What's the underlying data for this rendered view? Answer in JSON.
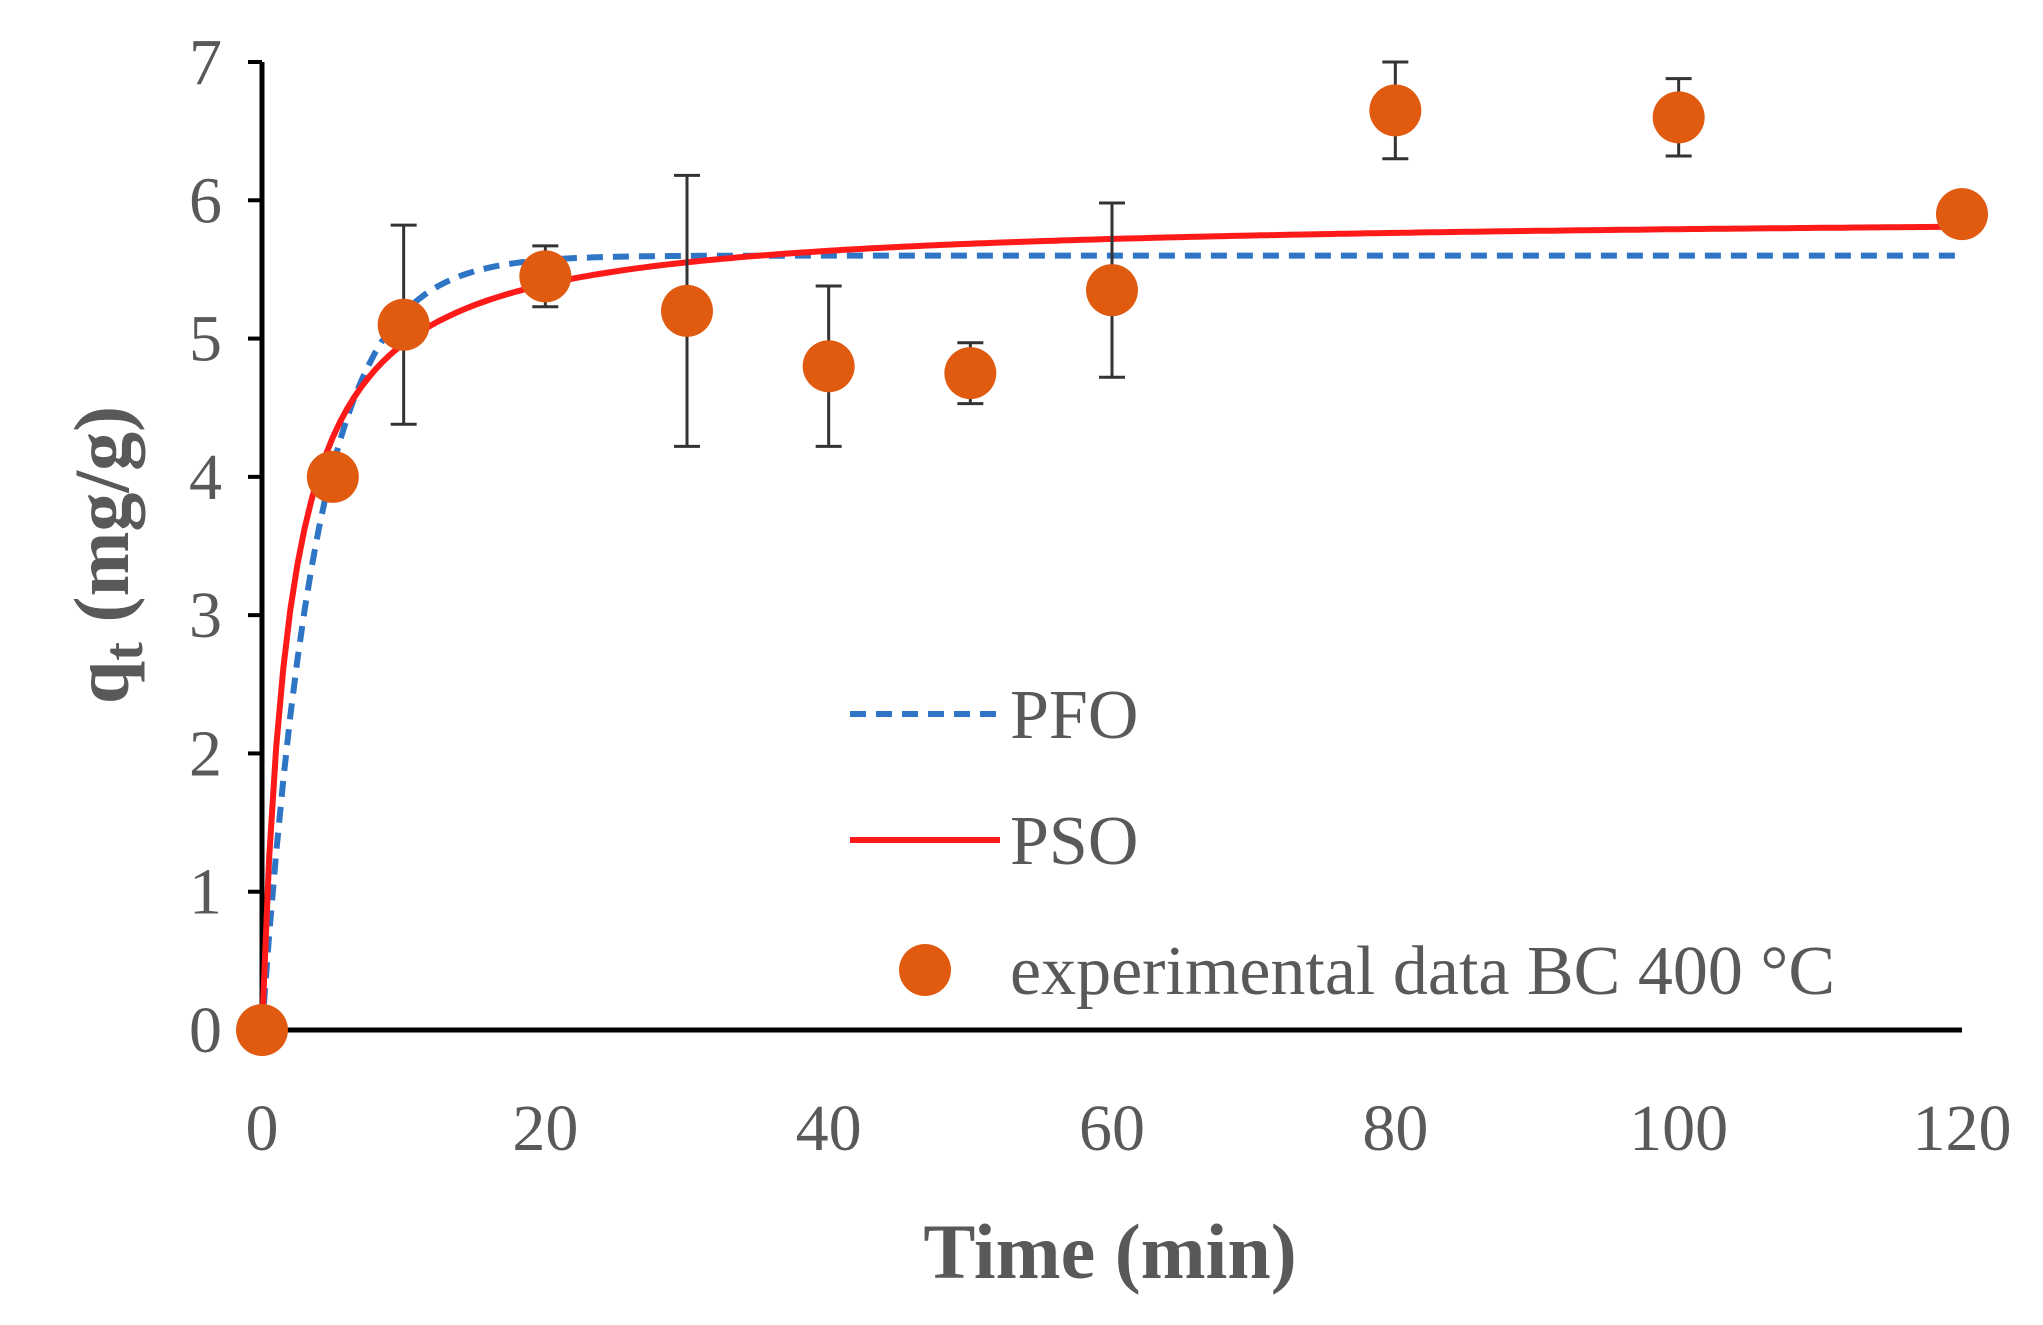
{
  "chart_data": {
    "type": "scatter",
    "title": "",
    "xlabel": "Time (min)",
    "ylabel_main": "q",
    "ylabel_sub": "t",
    "ylabel_units": " (mg/g)",
    "xlim": [
      0,
      120
    ],
    "ylim": [
      0,
      7
    ],
    "xticks": [
      0,
      20,
      40,
      60,
      80,
      100,
      120
    ],
    "yticks": [
      0,
      1,
      2,
      3,
      4,
      5,
      6,
      7
    ],
    "grid": false,
    "legend_position": "bottom-right",
    "experimental": {
      "name": "experimental data BC 400 °C",
      "color": "#e05a10",
      "x": [
        0,
        5,
        10,
        20,
        30,
        40,
        50,
        60,
        80,
        100,
        120
      ],
      "y": [
        0,
        4.0,
        5.1,
        5.45,
        5.2,
        4.8,
        4.75,
        5.35,
        6.65,
        6.6,
        5.9
      ],
      "error": [
        0,
        0,
        0.72,
        0.22,
        0.98,
        0.58,
        0.22,
        0.63,
        0.35,
        0.28,
        0
      ]
    },
    "pfo": {
      "name": "PFO",
      "color": "#2e75c6",
      "style": "dashed",
      "qe": 5.6,
      "k1": 0.26
    },
    "pso": {
      "name": "PSO",
      "color": "#ff1a1a",
      "style": "solid",
      "qe": 5.9,
      "k2": 0.09
    }
  }
}
